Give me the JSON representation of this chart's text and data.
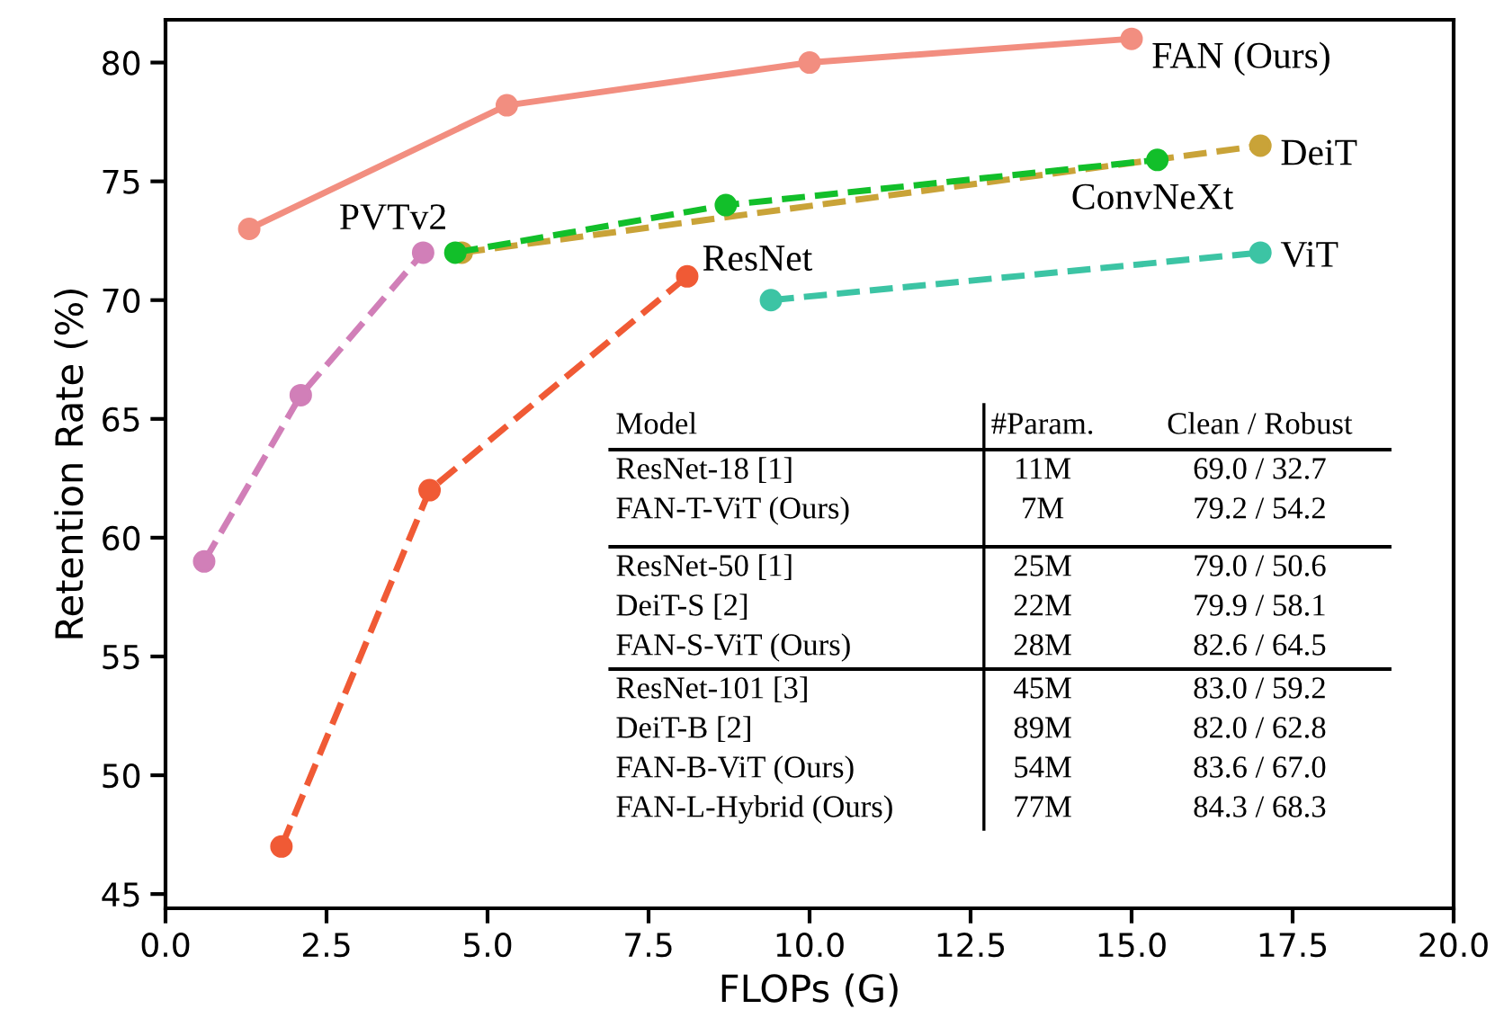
{
  "chart_data": {
    "type": "line",
    "xlabel": "FLOPs (G)",
    "ylabel": "Retention Rate (%)",
    "xlim": [
      0,
      20
    ],
    "ylim": [
      44.4,
      81.8
    ],
    "xticks": [
      {
        "value": 0,
        "label": "0.0"
      },
      {
        "value": 2.5,
        "label": "2.5"
      },
      {
        "value": 5,
        "label": "5.0"
      },
      {
        "value": 7.5,
        "label": "7.5"
      },
      {
        "value": 10,
        "label": "10.0"
      },
      {
        "value": 12.5,
        "label": "12.5"
      },
      {
        "value": 15,
        "label": "15.0"
      },
      {
        "value": 17.5,
        "label": "17.5"
      },
      {
        "value": 20,
        "label": "20.0"
      }
    ],
    "yticks": [
      45,
      50,
      55,
      60,
      65,
      70,
      75,
      80
    ],
    "marker": "circle",
    "grid": false,
    "legend": false,
    "series": [
      {
        "name": "FAN (Ours)",
        "color": "#f28e80",
        "line_style": "solid",
        "x": [
          1.3,
          5.3,
          10,
          15
        ],
        "values": [
          73,
          78.2,
          80,
          81
        ]
      },
      {
        "name": "DeiT",
        "color": "#c9a338",
        "line_style": "dashed",
        "x": [
          4.6,
          17
        ],
        "values": [
          72,
          76.5
        ]
      },
      {
        "name": "ConvNeXt",
        "color": "#12bf2a",
        "line_style": "dashed",
        "x": [
          4.5,
          8.7,
          15.4
        ],
        "values": [
          72,
          74,
          75.9
        ]
      },
      {
        "name": "PVTv2",
        "color": "#d17fb8",
        "line_style": "dashed",
        "x": [
          0.6,
          2.1,
          4
        ],
        "values": [
          59,
          66,
          72
        ]
      },
      {
        "name": "ResNet",
        "color": "#f05a35",
        "line_style": "dashed",
        "x": [
          1.8,
          4.1,
          8.1
        ],
        "values": [
          47,
          62,
          71
        ]
      },
      {
        "name": "ViT",
        "color": "#3cc4a4",
        "line_style": "dashed",
        "x": [
          9.4,
          17
        ],
        "values": [
          70,
          72
        ]
      }
    ],
    "annotations": [
      "Model",
      "#Param.",
      "Clean / Robust",
      "ResNet-18 [1]",
      "11M",
      "69.0 / 32.7",
      "FAN-T-ViT (Ours)",
      "7M",
      "79.2 / 54.2",
      "ResNet-50 [1]",
      "25M",
      "79.0 / 50.6",
      "DeiT-S [2]",
      "22M",
      "79.9 / 58.1",
      "FAN-S-ViT (Ours)",
      "28M",
      "82.6 / 64.5",
      "ResNet-101 [3]",
      "45M",
      "83.0 / 59.2",
      "DeiT-B [2]",
      "89M",
      "82.0 / 62.8",
      "FAN-B-ViT (Ours)",
      "54M",
      "83.6 / 67.0",
      "FAN-L-Hybrid (Ours)",
      "77M",
      "84.3 / 68.3"
    ]
  }
}
